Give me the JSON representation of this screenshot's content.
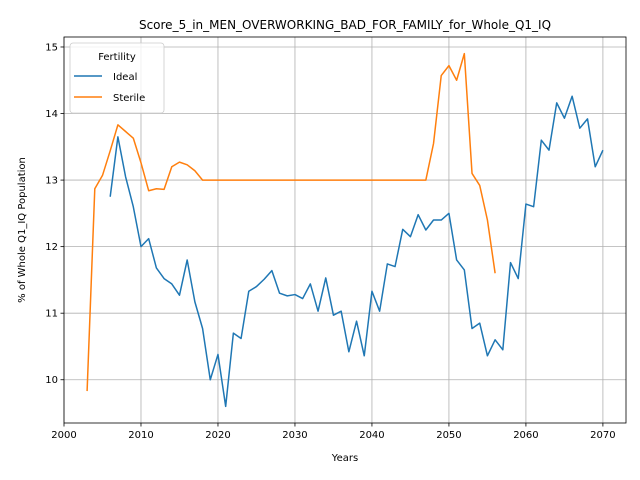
{
  "chart_data": {
    "type": "line",
    "title": "Score_5_in_MEN_OVERWORKING_BAD_FOR_FAMILY_for_Whole_Q1_IQ",
    "xlabel": "Years",
    "ylabel": "% of Whole Q1_IQ Population",
    "xlim": [
      2000,
      2073
    ],
    "ylim": [
      9.35,
      15.15
    ],
    "xticks": [
      2000,
      2010,
      2020,
      2030,
      2040,
      2050,
      2060,
      2070
    ],
    "yticks": [
      10,
      11,
      12,
      13,
      14,
      15
    ],
    "grid": true,
    "legend": {
      "title": "Fertility",
      "placement": "top-left"
    },
    "series": [
      {
        "name": "Ideal",
        "color": "#1f77b4",
        "x": [
          2006,
          2007,
          2008,
          2009,
          2010,
          2011,
          2012,
          2013,
          2014,
          2015,
          2016,
          2017,
          2018,
          2019,
          2020,
          2021,
          2022,
          2023,
          2024,
          2025,
          2026,
          2027,
          2028,
          2029,
          2030,
          2031,
          2032,
          2033,
          2034,
          2035,
          2036,
          2037,
          2038,
          2039,
          2040,
          2041,
          2042,
          2043,
          2044,
          2045,
          2046,
          2047,
          2048,
          2049,
          2050,
          2051,
          2052,
          2053,
          2054,
          2055,
          2056,
          2057,
          2058,
          2059,
          2060,
          2061,
          2062,
          2063,
          2064,
          2065,
          2066,
          2067,
          2068,
          2069,
          2070
        ],
        "y": [
          12.75,
          13.65,
          13.05,
          12.6,
          12.0,
          12.12,
          11.68,
          11.52,
          11.44,
          11.27,
          11.8,
          11.17,
          10.77,
          10.0,
          10.38,
          9.6,
          10.7,
          10.62,
          11.33,
          11.4,
          11.51,
          11.64,
          11.3,
          11.26,
          11.28,
          11.22,
          11.44,
          11.03,
          11.53,
          10.97,
          11.03,
          10.42,
          10.88,
          10.36,
          11.33,
          11.03,
          11.74,
          11.7,
          12.26,
          12.15,
          12.48,
          12.25,
          12.4,
          12.4,
          12.5,
          11.8,
          11.65,
          10.77,
          10.85,
          10.36,
          10.6,
          10.45,
          11.76,
          11.52,
          12.64,
          12.6,
          13.6,
          13.45,
          14.16,
          13.93,
          14.26,
          13.78,
          13.92,
          13.2,
          13.45
        ]
      },
      {
        "name": "Sterile",
        "color": "#ff7f0e",
        "x": [
          2003,
          2004,
          2005,
          2006,
          2007,
          2008,
          2009,
          2010,
          2011,
          2012,
          2013,
          2014,
          2015,
          2016,
          2017,
          2018,
          2019,
          2020,
          2021,
          2022,
          2023,
          2024,
          2025,
          2026,
          2027,
          2028,
          2029,
          2030,
          2031,
          2032,
          2033,
          2034,
          2035,
          2036,
          2037,
          2038,
          2039,
          2040,
          2041,
          2042,
          2043,
          2044,
          2045,
          2046,
          2047,
          2048,
          2049,
          2050,
          2051,
          2052,
          2053,
          2054,
          2055,
          2056
        ],
        "y": [
          9.83,
          12.87,
          13.07,
          13.44,
          13.83,
          13.73,
          13.63,
          13.26,
          12.84,
          12.87,
          12.86,
          13.2,
          13.27,
          13.23,
          13.14,
          13.0,
          13.0,
          13.0,
          13.0,
          13.0,
          13.0,
          13.0,
          13.0,
          13.0,
          13.0,
          13.0,
          13.0,
          13.0,
          13.0,
          13.0,
          13.0,
          13.0,
          13.0,
          13.0,
          13.0,
          13.0,
          13.0,
          13.0,
          13.0,
          13.0,
          13.0,
          13.0,
          13.0,
          13.0,
          13.0,
          13.55,
          14.57,
          14.72,
          14.5,
          14.9,
          13.1,
          12.92,
          12.4,
          11.6
        ]
      }
    ]
  }
}
